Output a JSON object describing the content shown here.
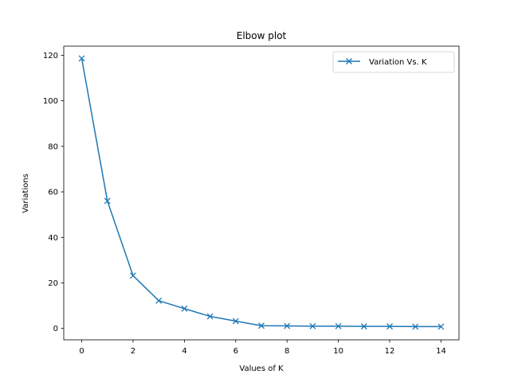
{
  "chart_data": {
    "type": "line",
    "title": "Elbow plot",
    "xlabel": "Values of K",
    "ylabel": "Variations",
    "x": [
      0,
      1,
      2,
      3,
      4,
      5,
      6,
      7,
      8,
      9,
      10,
      11,
      12,
      13,
      14
    ],
    "series": [
      {
        "name": "Variation Vs. K",
        "values": [
          118.6,
          56.0,
          23.2,
          12.2,
          8.7,
          5.3,
          3.2,
          1.2,
          1.1,
          1.0,
          1.0,
          0.9,
          0.9,
          0.8,
          0.8
        ],
        "color": "#1f77b4",
        "marker": "x"
      }
    ],
    "xlim": [
      -0.7,
      14.7
    ],
    "ylim": [
      -5,
      124
    ],
    "xticks": [
      0,
      2,
      4,
      6,
      8,
      10,
      12,
      14
    ],
    "yticks": [
      0,
      20,
      40,
      60,
      80,
      100,
      120
    ],
    "grid": false,
    "legend_position": "top-right"
  }
}
